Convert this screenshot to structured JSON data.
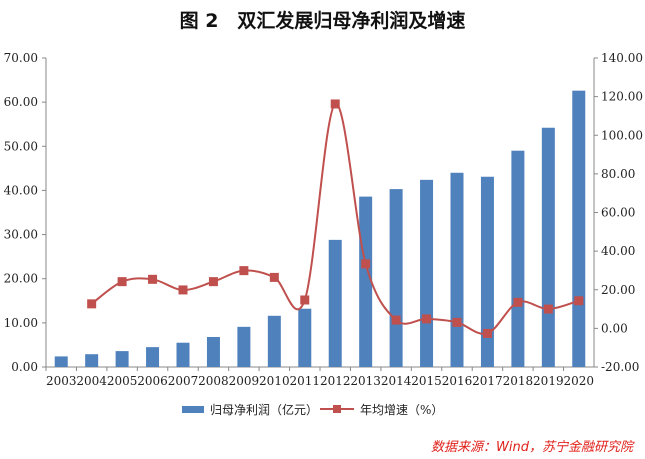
{
  "chart_data": {
    "type": "bar+line",
    "title": "图 2　双汇发展归母净利润及增速",
    "categories": [
      "2003",
      "2004",
      "2005",
      "2006",
      "2007",
      "2008",
      "2009",
      "2010",
      "2011",
      "2012",
      "2013",
      "2014",
      "2015",
      "2016",
      "2017",
      "2018",
      "2019",
      "2020"
    ],
    "series": [
      {
        "name": "归母净利润（亿元）",
        "type": "bar",
        "axis": "left",
        "color": "#4f81bd",
        "values": [
          2.4,
          2.9,
          3.6,
          4.5,
          5.5,
          6.8,
          9.1,
          11.6,
          13.2,
          28.8,
          38.6,
          40.3,
          42.4,
          44.0,
          43.1,
          49.0,
          54.2,
          62.6
        ]
      },
      {
        "name": "年均增速（%）",
        "type": "line",
        "axis": "right",
        "color": "#c0504d",
        "values": [
          null,
          12.7,
          24.2,
          25.4,
          19.9,
          24.2,
          29.9,
          26.4,
          14.7,
          116.2,
          33.4,
          4.3,
          4.9,
          3.1,
          -2.6,
          13.5,
          10.0,
          14.3
        ]
      }
    ],
    "left_axis": {
      "ylim": [
        0,
        70
      ],
      "ticks": [
        "0.00",
        "10.00",
        "20.00",
        "30.00",
        "40.00",
        "50.00",
        "60.00",
        "70.00"
      ]
    },
    "right_axis": {
      "ylim": [
        -20,
        140
      ],
      "ticks": [
        "-20.00",
        "0.00",
        "20.00",
        "40.00",
        "60.00",
        "80.00",
        "100.00",
        "120.00",
        "140.00"
      ]
    },
    "legend": "bottom",
    "source": "数据来源：Wind，苏宁金融研究院"
  }
}
